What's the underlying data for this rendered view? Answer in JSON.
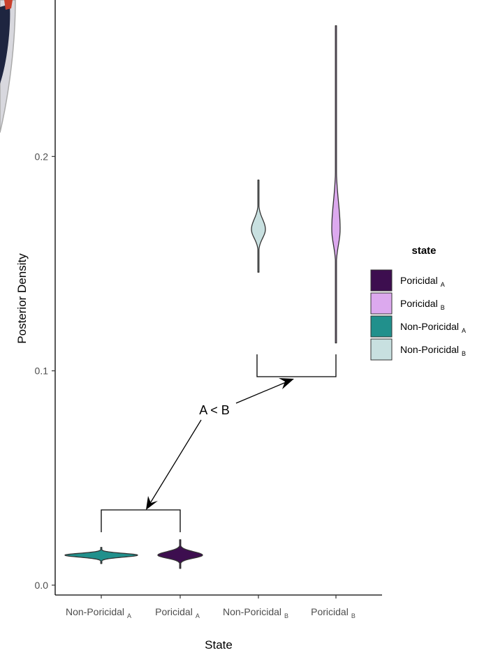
{
  "chart_data": {
    "type": "violin",
    "x_label": "State",
    "y_label": "Posterior Density",
    "legend_title": "state",
    "annotation": "A < B",
    "categories": [
      [
        "Non-Poricidal",
        "A"
      ],
      [
        "Poricidal",
        "A"
      ],
      [
        "Non-Poricidal",
        "B"
      ],
      [
        "Poricidal",
        "B"
      ]
    ],
    "series": [
      {
        "name": [
          "Poricidal",
          "A"
        ],
        "color": "#3d0e4f",
        "min": 0.0078,
        "mode": 0.014,
        "max": 0.0212
      },
      {
        "name": [
          "Poricidal",
          "B"
        ],
        "color": "#dca9ee",
        "min": 0.113,
        "mode": 0.166,
        "max": 0.261
      },
      {
        "name": [
          "Non-Poricidal",
          "A"
        ],
        "color": "#21908c",
        "min": 0.0101,
        "mode": 0.014,
        "max": 0.0176
      },
      {
        "name": [
          "Non-Poricidal",
          "B"
        ],
        "color": "#c8e0e0",
        "min": 0.146,
        "mode": 0.166,
        "max": 0.189
      }
    ],
    "ylim": [
      -0.0046,
      0.273
    ],
    "yticks": [
      {
        "value": 0,
        "label": "0.0"
      },
      0.1,
      0.2
    ],
    "legend_position": "right"
  }
}
